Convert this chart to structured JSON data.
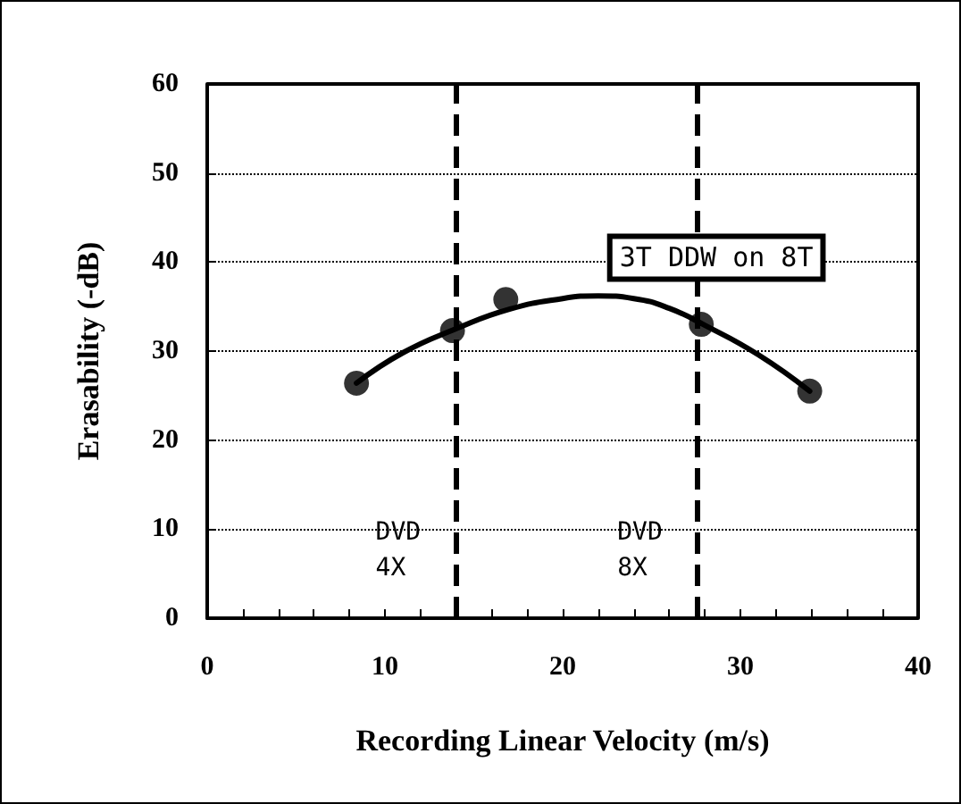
{
  "chart_data": {
    "type": "scatter",
    "xlabel": "Recording Linear Velocity (m/s)",
    "ylabel": "Erasability (-dB)",
    "xlim": [
      0,
      40
    ],
    "xticks": [
      0,
      {
        "value": 2,
        "label": null
      },
      {
        "value": 4,
        "label": null
      },
      {
        "value": 6,
        "label": null
      },
      {
        "value": 8,
        "label": null
      },
      10,
      {
        "value": 12,
        "label": null
      },
      {
        "value": 14,
        "label": null
      },
      {
        "value": 16,
        "label": null
      },
      {
        "value": 18,
        "label": null
      },
      20,
      {
        "value": 22,
        "label": null
      },
      {
        "value": 24,
        "label": null
      },
      {
        "value": 26,
        "label": null
      },
      {
        "value": 28,
        "label": null
      },
      30,
      {
        "value": 32,
        "label": null
      },
      {
        "value": 34,
        "label": null
      },
      {
        "value": 36,
        "label": null
      },
      {
        "value": 38,
        "label": null
      },
      40
    ],
    "ylim": [
      0,
      60
    ],
    "yticks": [
      0,
      10,
      20,
      30,
      40,
      50,
      60
    ],
    "grid": "y",
    "series": [
      {
        "color": "#000000",
        "marker": "circle",
        "x": [
          8.4,
          13.8,
          16.8,
          27.8,
          33.9
        ],
        "values": [
          26.4,
          32.3,
          35.8,
          33.0,
          25.5
        ]
      },
      {
        "type": "line",
        "color": "#000000",
        "marker": "none",
        "x": [
          8.4,
          11,
          14,
          17,
          20,
          22,
          24,
          26,
          28,
          31,
          33.9
        ],
        "values": [
          26.4,
          29.8,
          32.5,
          34.7,
          35.9,
          36.2,
          35.9,
          34.8,
          32.9,
          29.6,
          25.5
        ]
      }
    ],
    "ref_lines": [
      {
        "axis": "x",
        "value": 14,
        "label": "DVD\n4X",
        "color": "#000000",
        "line_style": "dashed"
      },
      {
        "axis": "x",
        "value": 27.6,
        "label": "DVD\n8X",
        "color": "#000000",
        "line_style": "dashed"
      }
    ],
    "annotations": [
      "3T DDW on 8T"
    ]
  }
}
